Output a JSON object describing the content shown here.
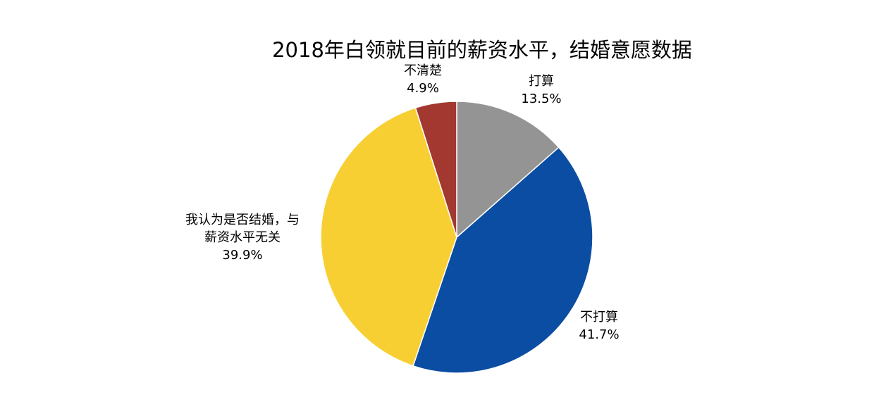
{
  "chart_data": {
    "type": "pie",
    "title": "2018年白领就目前的薪资水平，结婚意愿数据",
    "slices": [
      {
        "label_lines": [
          "打算"
        ],
        "value_text": "13.5%",
        "value": 13.5,
        "color": "#949494"
      },
      {
        "label_lines": [
          "不打算"
        ],
        "value_text": "41.7%",
        "value": 41.7,
        "color": "#0a4da2"
      },
      {
        "label_lines": [
          "我认为是否结婚，与",
          "薪资水平无关"
        ],
        "value_text": "39.9%",
        "value": 39.9,
        "color": "#f8cf33"
      },
      {
        "label_lines": [
          "不清楚"
        ],
        "value_text": "4.9%",
        "value": 4.9,
        "color": "#a33830"
      }
    ],
    "start_angle": "12 o'clock",
    "direction": "clockwise",
    "legend": "none",
    "label_position": "outside"
  }
}
